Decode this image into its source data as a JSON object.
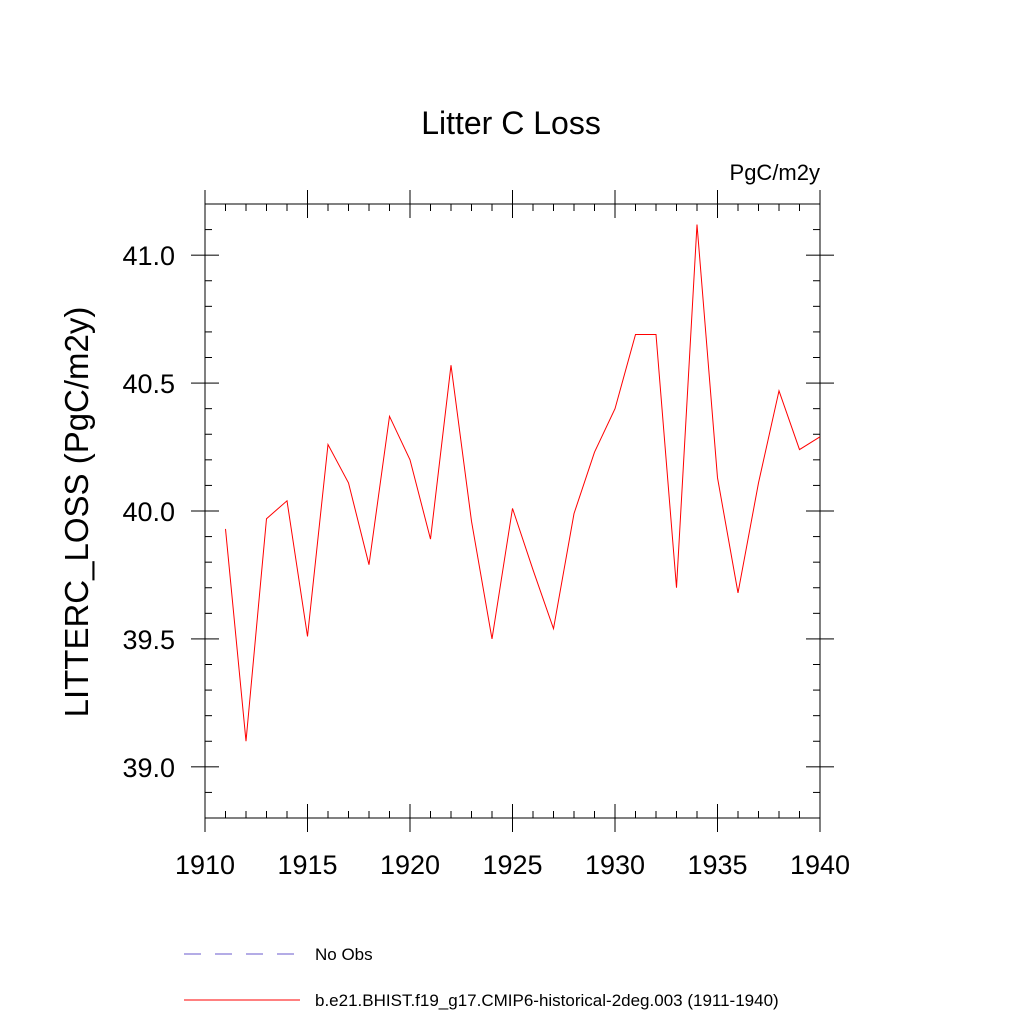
{
  "chart_data": {
    "type": "line",
    "title": "Litter C Loss",
    "units_label": "PgC/m2y",
    "ylabel": "LITTERC_LOSS  (PgC/m2y)",
    "xlabel": "",
    "xlim": [
      1910,
      1940
    ],
    "ylim": [
      38.8,
      41.2
    ],
    "x_ticks": [
      1910,
      1915,
      1920,
      1925,
      1930,
      1935,
      1940
    ],
    "y_ticks": [
      39.0,
      39.5,
      40.0,
      40.5,
      41.0
    ],
    "x_tick_labels": [
      "1910",
      "1915",
      "1920",
      "1925",
      "1930",
      "1935",
      "1940"
    ],
    "y_tick_labels": [
      "39.0",
      "39.5",
      "40.0",
      "40.5",
      "41.0"
    ],
    "grid": false,
    "legend_position": "bottom",
    "legend": [
      {
        "label": "No Obs",
        "color": "#6a5acd",
        "style": "dashed"
      },
      {
        "label": "b.e21.BHIST.f19_g17.CMIP6-historical-2deg.003 (1911-1940)",
        "color": "#ff0000",
        "style": "solid"
      }
    ],
    "series": [
      {
        "name": "b.e21.BHIST.f19_g17.CMIP6-historical-2deg.003 (1911-1940)",
        "color": "#ff0000",
        "x": [
          1911,
          1912,
          1913,
          1914,
          1915,
          1916,
          1917,
          1918,
          1919,
          1920,
          1921,
          1922,
          1923,
          1924,
          1925,
          1926,
          1927,
          1928,
          1929,
          1930,
          1931,
          1932,
          1933,
          1934,
          1935,
          1936,
          1937,
          1938,
          1939,
          1940
        ],
        "y": [
          39.93,
          39.1,
          39.97,
          40.04,
          39.51,
          40.26,
          40.11,
          39.79,
          40.37,
          40.2,
          39.89,
          40.57,
          39.96,
          39.5,
          40.01,
          39.77,
          39.54,
          39.99,
          40.23,
          40.4,
          40.69,
          40.69,
          39.7,
          41.12,
          40.13,
          39.68,
          40.11,
          40.47,
          40.24,
          40.29
        ]
      }
    ]
  }
}
